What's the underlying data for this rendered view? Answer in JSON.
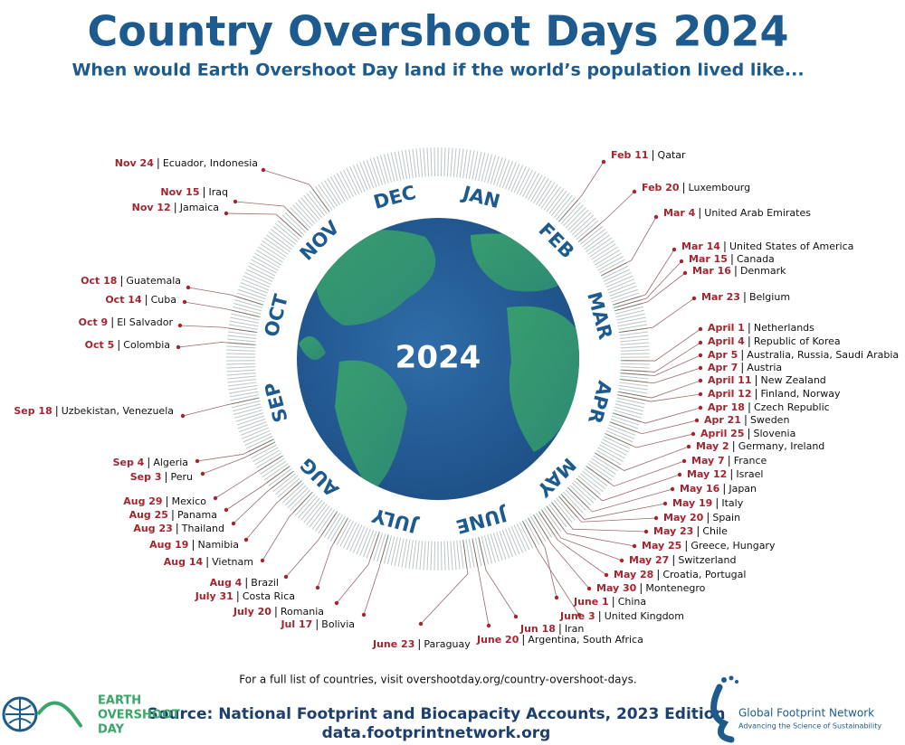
{
  "title": "Country Overshoot Days 2024",
  "subtitle": "When would Earth Overshoot Day land if the world’s population lived like...",
  "center_label": "2024",
  "months": [
    "JAN",
    "FEB",
    "MAR",
    "APR",
    "MAY",
    "JUNE",
    "JULY",
    "AUG",
    "SEP",
    "OCT",
    "NOV",
    "DEC"
  ],
  "entries": [
    {
      "date": "Feb 11",
      "countries": "Qatar"
    },
    {
      "date": "Feb 20",
      "countries": "Luxembourg"
    },
    {
      "date": "Mar 4",
      "countries": "United Arab Emirates"
    },
    {
      "date": "Mar 14",
      "countries": "United States of America"
    },
    {
      "date": "Mar 15",
      "countries": "Canada"
    },
    {
      "date": "Mar 16",
      "countries": "Denmark"
    },
    {
      "date": "Mar 23",
      "countries": "Belgium"
    },
    {
      "date": "April 1",
      "countries": "Netherlands"
    },
    {
      "date": "April 4",
      "countries": "Republic of Korea"
    },
    {
      "date": "Apr 5",
      "countries": "Australia, Russia, Saudi Arabia"
    },
    {
      "date": "Apr 7",
      "countries": "Austria"
    },
    {
      "date": "April 11",
      "countries": "New Zealand"
    },
    {
      "date": "April 12",
      "countries": "Finland, Norway"
    },
    {
      "date": "Apr 18",
      "countries": "Czech Republic"
    },
    {
      "date": "Apr 21",
      "countries": "Sweden"
    },
    {
      "date": "April 25",
      "countries": "Slovenia"
    },
    {
      "date": "May 2",
      "countries": "Germany, Ireland"
    },
    {
      "date": "May 7",
      "countries": "France"
    },
    {
      "date": "May 12",
      "countries": "Israel"
    },
    {
      "date": "May 16",
      "countries": "Japan"
    },
    {
      "date": "May 19",
      "countries": "Italy"
    },
    {
      "date": "May 20",
      "countries": "Spain"
    },
    {
      "date": "May 23",
      "countries": "Chile"
    },
    {
      "date": "May 25",
      "countries": "Greece, Hungary"
    },
    {
      "date": "May 27",
      "countries": "Switzerland"
    },
    {
      "date": "May 28",
      "countries": "Croatia, Portugal"
    },
    {
      "date": "May 30",
      "countries": "Montenegro"
    },
    {
      "date": "June 1",
      "countries": "China"
    },
    {
      "date": "June 3",
      "countries": "United Kingdom"
    },
    {
      "date": "Jun 18",
      "countries": "Iran"
    },
    {
      "date": "June 20",
      "countries": "Argentina, South Africa"
    },
    {
      "date": "June 23",
      "countries": "Paraguay"
    },
    {
      "date": "Jul 17",
      "countries": "Bolivia"
    },
    {
      "date": "July 20",
      "countries": "Romania"
    },
    {
      "date": "July 31",
      "countries": "Costa Rica"
    },
    {
      "date": "Aug 4",
      "countries": "Brazil"
    },
    {
      "date": "Aug 14",
      "countries": "Vietnam"
    },
    {
      "date": "Aug 19",
      "countries": "Namibia"
    },
    {
      "date": "Aug 23",
      "countries": "Thailand"
    },
    {
      "date": "Aug 25",
      "countries": "Panama"
    },
    {
      "date": "Aug 29",
      "countries": "Mexico"
    },
    {
      "date": "Sep 3",
      "countries": "Peru"
    },
    {
      "date": "Sep 4",
      "countries": "Algeria"
    },
    {
      "date": "Sep 18",
      "countries": "Uzbekistan, Venezuela"
    },
    {
      "date": "Oct 5",
      "countries": "Colombia"
    },
    {
      "date": "Oct 9",
      "countries": "El Salvador"
    },
    {
      "date": "Oct 14",
      "countries": "Cuba"
    },
    {
      "date": "Oct 18",
      "countries": "Guatemala"
    },
    {
      "date": "Nov 12",
      "countries": "Jamaica"
    },
    {
      "date": "Nov 15",
      "countries": "Iraq"
    },
    {
      "date": "Nov 24",
      "countries": "Ecuador, Indonesia"
    }
  ],
  "footer": {
    "note": "For a full list of countries, visit overshootday.org/country-overshoot-days.",
    "source": "Source: National Footprint and Biocapacity Accounts, 2023 Edition",
    "url": "data.footprintnetwork.org"
  },
  "logos": {
    "left": [
      "EARTH",
      "OVERSHOOT",
      "DAY"
    ],
    "right": {
      "name": "Global Footprint Network",
      "tagline": "Advancing the Science of Sustainability"
    }
  }
}
